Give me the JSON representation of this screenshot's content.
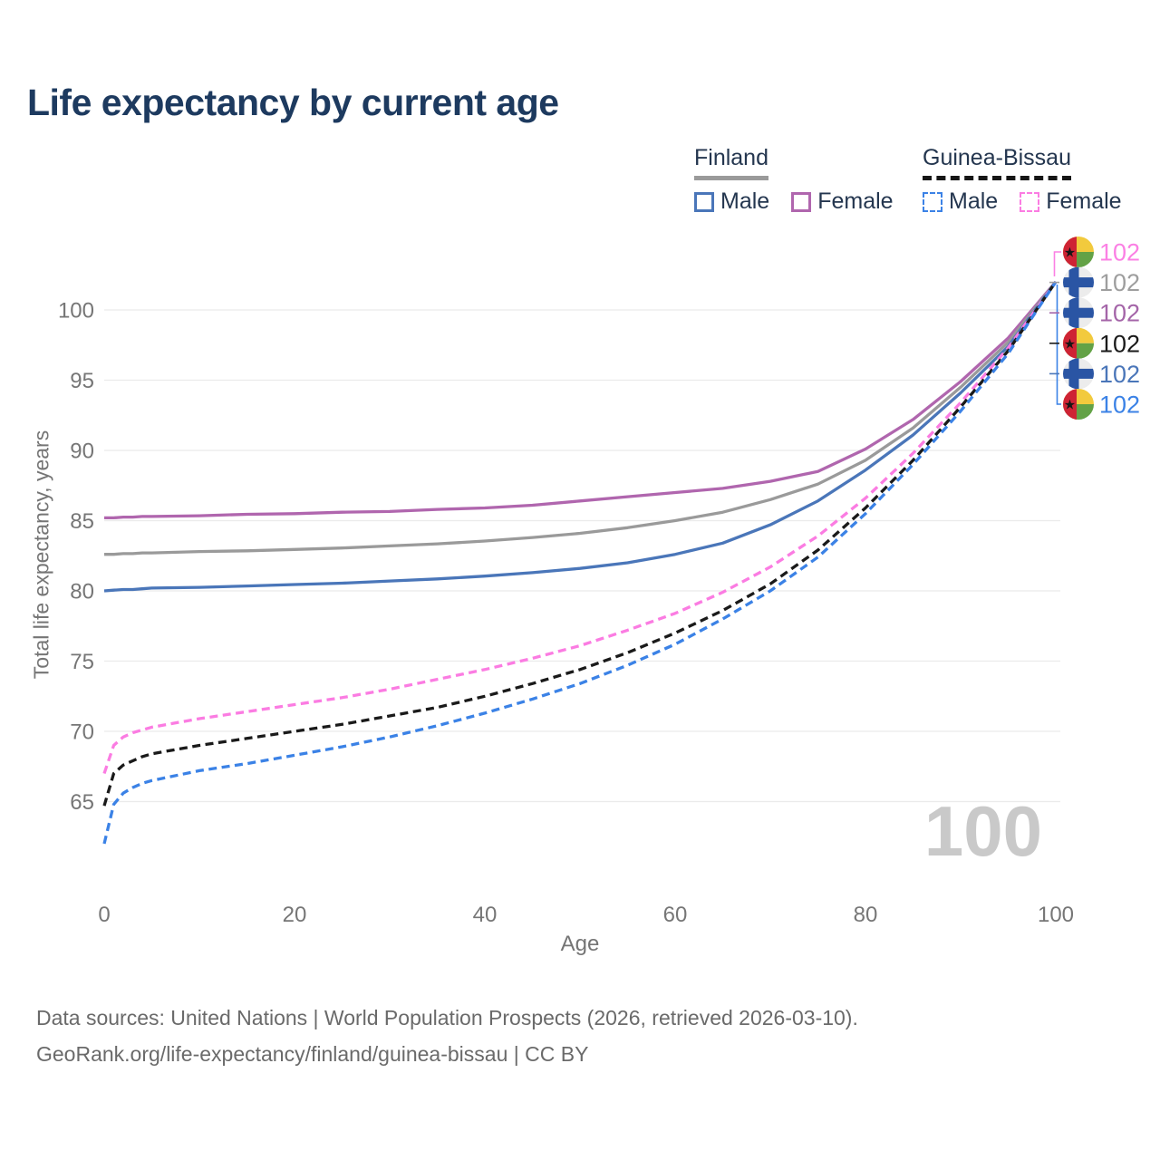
{
  "title": "Life expectancy by current age",
  "legend": {
    "groups": [
      {
        "name": "Finland",
        "line_style": "solid",
        "line_color": "#9a9a9a",
        "items": [
          {
            "label": "Male",
            "color": "#4a76b9",
            "dashed": false
          },
          {
            "label": "Female",
            "color": "#b066ae",
            "dashed": false
          }
        ]
      },
      {
        "name": "Guinea-Bissau",
        "line_style": "dashed",
        "line_color": "#161616",
        "items": [
          {
            "label": "Male",
            "color": "#3b82e6",
            "dashed": true
          },
          {
            "label": "Female",
            "color": "#fb7ce2",
            "dashed": true
          }
        ]
      }
    ]
  },
  "chart_data": {
    "type": "line",
    "title": "Life expectancy by current age",
    "xlabel": "Age",
    "ylabel": "Total life expectancy, years",
    "x_ticks": [
      0,
      20,
      40,
      60,
      80,
      100
    ],
    "y_ticks": [
      65,
      70,
      75,
      80,
      85,
      90,
      95,
      100
    ],
    "xlim": [
      0,
      100
    ],
    "ylim": [
      61.5,
      103
    ],
    "grid": "horizontal-only",
    "legend_position": "top-right",
    "age_counter": "100",
    "x": [
      0,
      1,
      2,
      3,
      4,
      5,
      10,
      15,
      20,
      25,
      30,
      35,
      40,
      45,
      50,
      55,
      60,
      65,
      70,
      75,
      80,
      85,
      90,
      95,
      100
    ],
    "series": [
      {
        "name": "Finland Female",
        "color": "#b066ae",
        "dashed": false,
        "values": [
          85.2,
          85.2,
          85.25,
          85.25,
          85.3,
          85.3,
          85.35,
          85.45,
          85.5,
          85.6,
          85.65,
          85.8,
          85.9,
          86.1,
          86.4,
          86.7,
          87.0,
          87.3,
          87.8,
          88.5,
          90.1,
          92.2,
          94.9,
          98.0,
          102
        ]
      },
      {
        "name": "Finland Total",
        "color": "#9a9a9a",
        "dashed": false,
        "values": [
          82.6,
          82.6,
          82.65,
          82.65,
          82.7,
          82.7,
          82.8,
          82.85,
          82.95,
          83.05,
          83.2,
          83.35,
          83.55,
          83.8,
          84.1,
          84.5,
          85.0,
          85.6,
          86.5,
          87.6,
          89.3,
          91.6,
          94.5,
          97.7,
          102
        ]
      },
      {
        "name": "Finland Male",
        "color": "#4a76b9",
        "dashed": false,
        "values": [
          80.0,
          80.05,
          80.1,
          80.1,
          80.15,
          80.2,
          80.25,
          80.35,
          80.45,
          80.55,
          80.7,
          80.85,
          81.05,
          81.3,
          81.6,
          82.0,
          82.6,
          83.4,
          84.7,
          86.4,
          88.6,
          91.1,
          94.1,
          97.4,
          102
        ]
      },
      {
        "name": "Guinea-Bissau Female",
        "color": "#fb7ce2",
        "dashed": true,
        "values": [
          67.0,
          69.0,
          69.6,
          69.9,
          70.1,
          70.3,
          70.9,
          71.4,
          71.9,
          72.4,
          73.0,
          73.7,
          74.4,
          75.2,
          76.1,
          77.2,
          78.4,
          79.9,
          81.7,
          83.9,
          86.6,
          89.8,
          93.4,
          97.3,
          102
        ]
      },
      {
        "name": "Guinea-Bissau Total",
        "color": "#1a1a1a",
        "dashed": true,
        "values": [
          64.7,
          67.0,
          67.6,
          67.9,
          68.2,
          68.4,
          69.0,
          69.5,
          70.0,
          70.5,
          71.1,
          71.7,
          72.5,
          73.4,
          74.4,
          75.6,
          77.0,
          78.6,
          80.5,
          82.9,
          85.9,
          89.3,
          93.1,
          97.1,
          102
        ]
      },
      {
        "name": "Guinea-Bissau Male",
        "color": "#3b82e6",
        "dashed": true,
        "values": [
          62.0,
          64.8,
          65.6,
          66.0,
          66.3,
          66.5,
          67.2,
          67.7,
          68.3,
          68.9,
          69.6,
          70.4,
          71.3,
          72.3,
          73.4,
          74.7,
          76.2,
          78.0,
          80.0,
          82.4,
          85.5,
          89.0,
          92.8,
          96.9,
          102
        ]
      }
    ],
    "end_labels": [
      {
        "value": "102",
        "country": "Guinea-Bissau",
        "flag": "guinea-bissau",
        "color": "#fb80e4"
      },
      {
        "value": "102",
        "country": "Finland",
        "flag": "finland",
        "color": "#9e9e9e"
      },
      {
        "value": "102",
        "country": "Finland",
        "flag": "finland",
        "color": "#a465a8"
      },
      {
        "value": "102",
        "country": "Guinea-Bissau",
        "flag": "guinea-bissau",
        "color": "#1a1a1a"
      },
      {
        "value": "102",
        "country": "Finland",
        "flag": "finland",
        "color": "#4a76b9"
      },
      {
        "value": "102",
        "country": "Guinea-Bissau",
        "flag": "guinea-bissau",
        "color": "#3b82e6"
      }
    ]
  },
  "footer": {
    "line1": "Data sources: United Nations | World Population Prospects (2026, retrieved 2026-03-10).",
    "line2": "GeoRank.org/life-expectancy/finland/guinea-bissau | CC BY"
  }
}
